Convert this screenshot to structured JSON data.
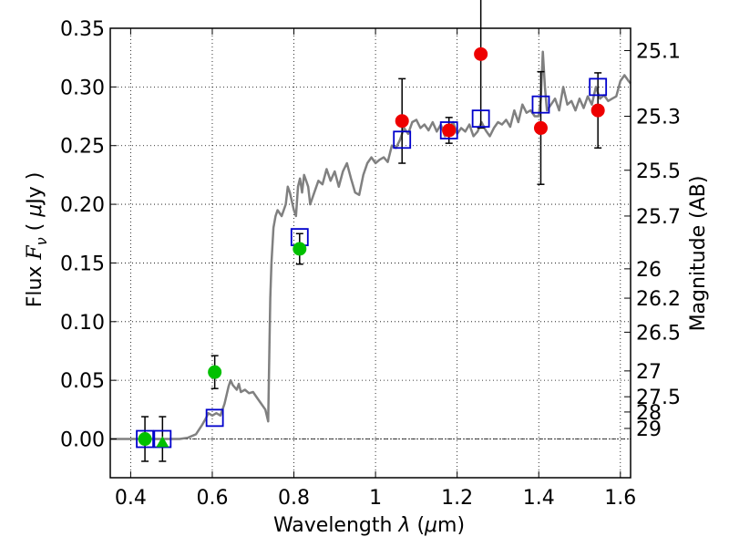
{
  "chart_data": {
    "type": "scatter",
    "xlabel_parts": [
      "Wavelength ",
      "λ",
      " (",
      "μ",
      "m)"
    ],
    "ylabel_parts": [
      "Flux ",
      "F",
      "ν",
      " ( ",
      "μ",
      "Jy )"
    ],
    "ylabel_right": "Magnitude (AB)",
    "xlim": [
      0.35,
      1.625
    ],
    "ylim": [
      -0.033,
      0.35
    ],
    "grid": true,
    "x_ticks": [
      {
        "value": 0.4,
        "label": "0.4"
      },
      {
        "value": 0.6,
        "label": "0.6"
      },
      {
        "value": 0.8,
        "label": "0.8"
      },
      {
        "value": 1.0,
        "label": "1"
      },
      {
        "value": 1.2,
        "label": "1.2"
      },
      {
        "value": 1.4,
        "label": "1.4"
      },
      {
        "value": 1.6,
        "label": "1.6"
      }
    ],
    "y_ticks": [
      {
        "value": 0.0,
        "label": "0.00"
      },
      {
        "value": 0.05,
        "label": "0.05"
      },
      {
        "value": 0.1,
        "label": "0.10"
      },
      {
        "value": 0.15,
        "label": "0.15"
      },
      {
        "value": 0.2,
        "label": "0.20"
      },
      {
        "value": 0.25,
        "label": "0.25"
      },
      {
        "value": 0.3,
        "label": "0.30"
      },
      {
        "value": 0.35,
        "label": "0.35"
      }
    ],
    "mag_ticks": [
      {
        "label": "25.1",
        "flux": 0.331
      },
      {
        "label": "25.3",
        "flux": 0.275
      },
      {
        "label": "25.5",
        "flux": 0.229
      },
      {
        "label": "25.7",
        "flux": 0.19
      },
      {
        "label": "26",
        "flux": 0.145
      },
      {
        "label": "26.2",
        "flux": 0.12
      },
      {
        "label": "26.5",
        "flux": 0.091
      },
      {
        "label": "27",
        "flux": 0.058
      },
      {
        "label": "27.5",
        "flux": 0.036
      },
      {
        "label": "28",
        "flux": 0.023
      },
      {
        "label": "29",
        "flux": 0.009
      }
    ],
    "zero_line": 0.0,
    "colors": {
      "model": "#808080",
      "green": "#00c000",
      "red": "#ee0000",
      "model_box": "#0000cc",
      "error_bar": "#000000"
    },
    "model_sed": {
      "name": "model spectrum",
      "x": [
        0.35,
        0.45,
        0.5,
        0.52,
        0.54,
        0.56,
        0.575,
        0.585,
        0.59,
        0.6,
        0.61,
        0.62,
        0.63,
        0.64,
        0.645,
        0.65,
        0.66,
        0.665,
        0.67,
        0.68,
        0.69,
        0.7,
        0.71,
        0.72,
        0.73,
        0.737,
        0.74,
        0.742,
        0.745,
        0.75,
        0.755,
        0.76,
        0.77,
        0.78,
        0.785,
        0.79,
        0.8,
        0.805,
        0.81,
        0.815,
        0.82,
        0.825,
        0.83,
        0.835,
        0.84,
        0.85,
        0.86,
        0.87,
        0.88,
        0.89,
        0.9,
        0.91,
        0.92,
        0.93,
        0.94,
        0.95,
        0.96,
        0.97,
        0.98,
        0.99,
        1.0,
        1.01,
        1.02,
        1.03,
        1.04,
        1.05,
        1.06,
        1.07,
        1.08,
        1.09,
        1.1,
        1.11,
        1.12,
        1.13,
        1.14,
        1.15,
        1.16,
        1.17,
        1.18,
        1.19,
        1.2,
        1.21,
        1.22,
        1.23,
        1.24,
        1.25,
        1.26,
        1.27,
        1.28,
        1.29,
        1.3,
        1.31,
        1.32,
        1.33,
        1.34,
        1.35,
        1.36,
        1.37,
        1.38,
        1.39,
        1.4,
        1.405,
        1.41,
        1.415,
        1.42,
        1.43,
        1.44,
        1.45,
        1.46,
        1.47,
        1.48,
        1.49,
        1.5,
        1.51,
        1.52,
        1.53,
        1.54,
        1.55,
        1.56,
        1.57,
        1.58,
        1.59,
        1.6,
        1.61,
        1.62,
        1.625
      ],
      "y": [
        0.0,
        0.0,
        0.0,
        0.0,
        0.001,
        0.004,
        0.012,
        0.018,
        0.022,
        0.02,
        0.022,
        0.02,
        0.03,
        0.045,
        0.05,
        0.046,
        0.042,
        0.047,
        0.04,
        0.042,
        0.039,
        0.04,
        0.035,
        0.03,
        0.025,
        0.015,
        0.08,
        0.12,
        0.15,
        0.18,
        0.19,
        0.195,
        0.19,
        0.2,
        0.215,
        0.21,
        0.195,
        0.19,
        0.215,
        0.222,
        0.21,
        0.225,
        0.22,
        0.215,
        0.2,
        0.21,
        0.22,
        0.217,
        0.23,
        0.22,
        0.228,
        0.215,
        0.228,
        0.235,
        0.222,
        0.21,
        0.208,
        0.225,
        0.235,
        0.24,
        0.235,
        0.238,
        0.24,
        0.236,
        0.25,
        0.248,
        0.255,
        0.265,
        0.26,
        0.27,
        0.272,
        0.265,
        0.268,
        0.263,
        0.27,
        0.262,
        0.268,
        0.258,
        0.265,
        0.27,
        0.26,
        0.265,
        0.262,
        0.268,
        0.258,
        0.262,
        0.27,
        0.263,
        0.258,
        0.265,
        0.27,
        0.268,
        0.272,
        0.266,
        0.28,
        0.27,
        0.285,
        0.278,
        0.28,
        0.275,
        0.275,
        0.29,
        0.33,
        0.3,
        0.28,
        0.285,
        0.29,
        0.28,
        0.3,
        0.285,
        0.288,
        0.28,
        0.29,
        0.282,
        0.292,
        0.285,
        0.3,
        0.29,
        0.293,
        0.288,
        0.29,
        0.292,
        0.305,
        0.31,
        0.305,
        0.303
      ]
    },
    "series": [
      {
        "name": "model band flux",
        "marker": "square",
        "x": [
          0.435,
          0.478,
          0.606,
          0.814,
          1.065,
          1.18,
          1.258,
          1.405,
          1.545
        ],
        "y": [
          0.0,
          0.0,
          0.018,
          0.172,
          0.255,
          0.263,
          0.273,
          0.285,
          0.3
        ]
      },
      {
        "name": "observed (green)",
        "marker": "circle",
        "x": [
          0.435,
          0.606,
          0.814
        ],
        "y": [
          0.0,
          0.057,
          0.162
        ],
        "yerr": [
          0.019,
          0.014,
          0.013
        ]
      },
      {
        "name": "observed (green, upper limit)",
        "marker": "triangle",
        "x": [
          0.478
        ],
        "y": [
          -0.003
        ],
        "yerr": [
          0.019
        ]
      },
      {
        "name": "observed (red)",
        "marker": "circle",
        "x": [
          1.065,
          1.18,
          1.258,
          1.405,
          1.545
        ],
        "y": [
          0.271,
          0.263,
          0.328,
          0.265,
          0.28
        ],
        "yerr": [
          0.036,
          0.011,
          0.063,
          0.048,
          0.032
        ]
      }
    ]
  }
}
